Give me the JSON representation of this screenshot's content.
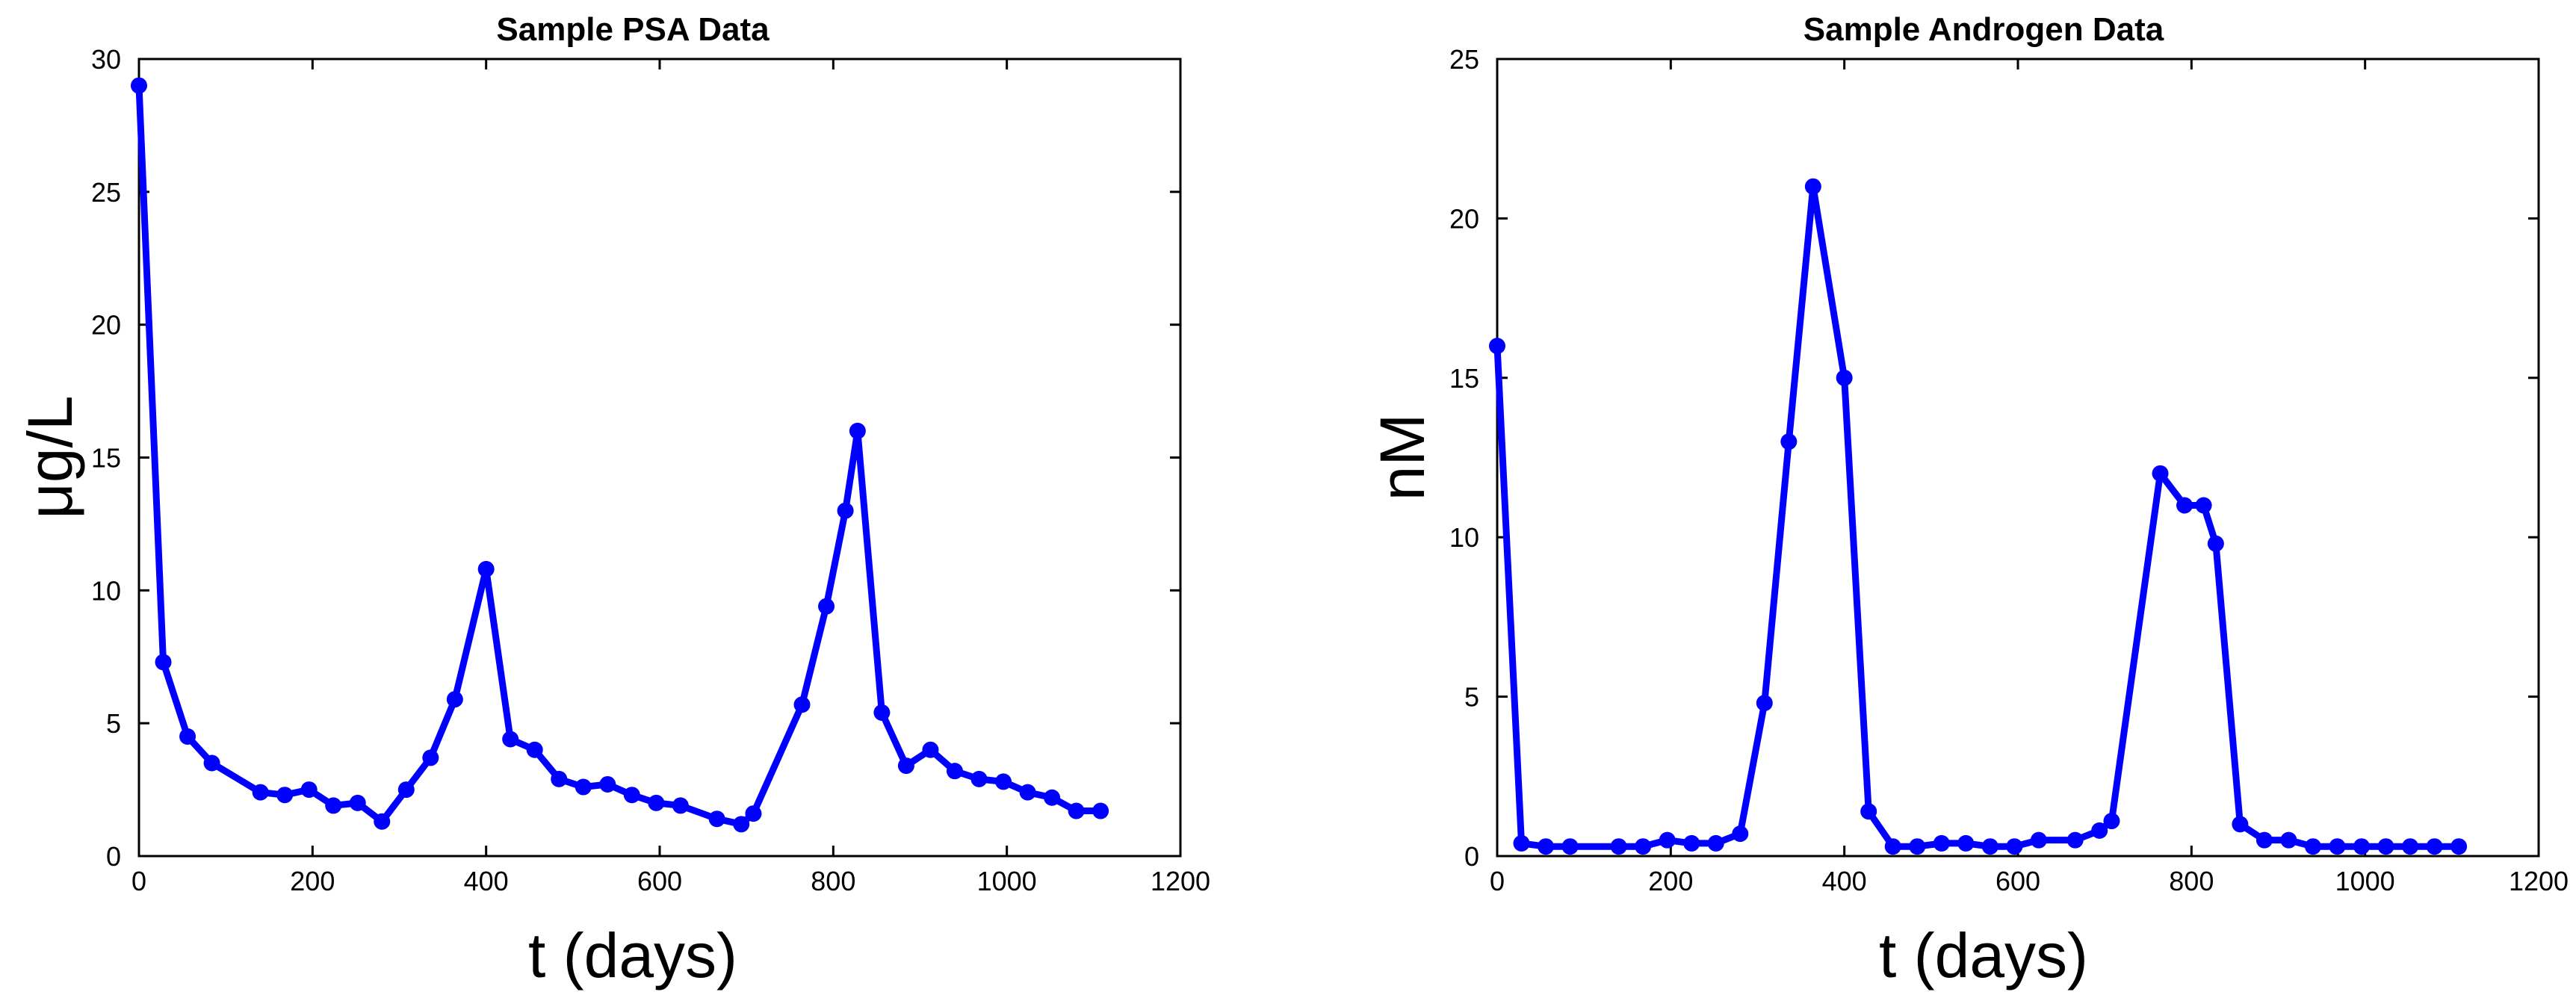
{
  "chart_data": [
    {
      "type": "line",
      "title": "Sample PSA Data",
      "xlabel": "t (days)",
      "ylabel": "μg/L",
      "xlim": [
        0,
        1200
      ],
      "ylim": [
        0,
        30
      ],
      "xticks": [
        0,
        200,
        400,
        600,
        800,
        1000,
        1200
      ],
      "yticks": [
        0,
        5,
        10,
        15,
        20,
        25,
        30
      ],
      "color": "#0000ff",
      "grid": false,
      "series": [
        {
          "x": [
            0,
            28,
            56,
            84,
            140,
            168,
            196,
            224,
            252,
            280,
            308,
            336,
            364,
            400,
            428,
            456,
            484,
            512,
            540,
            568,
            596,
            624,
            666,
            694,
            708,
            764,
            792,
            814,
            828,
            856,
            884,
            912,
            940,
            968,
            996,
            1024,
            1052,
            1080,
            1108
          ],
          "y": [
            29.0,
            7.3,
            4.5,
            3.5,
            2.4,
            2.3,
            2.5,
            1.9,
            2.0,
            1.3,
            2.5,
            3.7,
            5.9,
            10.8,
            4.4,
            4.0,
            2.9,
            2.6,
            2.7,
            2.3,
            2.0,
            1.9,
            1.4,
            1.2,
            1.6,
            5.7,
            9.4,
            13.0,
            16.0,
            5.4,
            3.4,
            4.0,
            3.2,
            2.9,
            2.8,
            2.4,
            2.2,
            1.7,
            1.7
          ]
        }
      ]
    },
    {
      "type": "line",
      "title": "Sample Androgen Data",
      "xlabel": "t (days)",
      "ylabel": "nM",
      "xlim": [
        0,
        1200
      ],
      "ylim": [
        0,
        25
      ],
      "xticks": [
        0,
        200,
        400,
        600,
        800,
        1000,
        1200
      ],
      "yticks": [
        0,
        5,
        10,
        15,
        20,
        25
      ],
      "color": "#0000ff",
      "grid": false,
      "series": [
        {
          "x": [
            0,
            28,
            56,
            84,
            140,
            168,
            196,
            224,
            252,
            280,
            308,
            336,
            364,
            400,
            428,
            456,
            484,
            512,
            540,
            568,
            596,
            624,
            666,
            694,
            708,
            764,
            792,
            814,
            828,
            856,
            884,
            912,
            940,
            968,
            996,
            1024,
            1052,
            1080,
            1108
          ],
          "y": [
            16.0,
            0.4,
            0.3,
            0.3,
            0.3,
            0.3,
            0.5,
            0.4,
            0.4,
            0.7,
            4.8,
            13.0,
            21.0,
            15.0,
            1.4,
            0.3,
            0.3,
            0.4,
            0.4,
            0.3,
            0.3,
            0.5,
            0.5,
            0.8,
            1.1,
            12.0,
            11.0,
            11.0,
            9.8,
            1.0,
            0.5,
            0.5,
            0.3,
            0.3,
            0.3,
            0.3,
            0.3,
            0.3,
            0.3
          ]
        }
      ]
    }
  ]
}
